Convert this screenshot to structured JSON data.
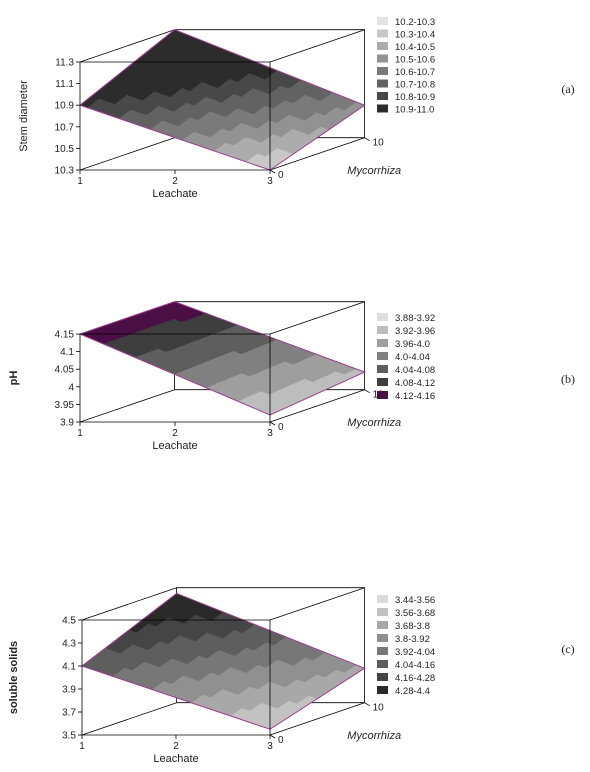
{
  "chart_data": [
    {
      "type": "surface3d",
      "panel_label": "(a)",
      "zlabel": "Stem diameter",
      "xlabel": "Leachate",
      "ylabel": "Mycorrhiza",
      "x_ticks": [
        "1",
        "2",
        "3"
      ],
      "y_ticks": [
        "0",
        "10"
      ],
      "z_ticks": [
        "10.3",
        "10.5",
        "10.7",
        "10.9",
        "11.1",
        "11.3"
      ],
      "xlim": [
        1,
        3
      ],
      "ylim": [
        0,
        10
      ],
      "zlim": [
        10.3,
        11.3
      ],
      "surface_corners": {
        "x1_y0": 10.9,
        "x1_y10": 11.3,
        "x3_y0": 10.3,
        "x3_y10": 10.6
      },
      "legend": [
        "10.2-10.3",
        "10.3-10.4",
        "10.4-10.5",
        "10.5-10.6",
        "10.6-10.7",
        "10.7-10.8",
        "10.8-10.9",
        "10.9-11.0"
      ],
      "legend_colors": [
        "#e3e3e3",
        "#c8c8c8",
        "#acacac",
        "#929292",
        "#7a7a7a",
        "#626262",
        "#484848",
        "#2c2c2c"
      ]
    },
    {
      "type": "surface3d",
      "panel_label": "(b)",
      "zlabel": "pH",
      "xlabel": "Leachate",
      "ylabel": "Mycorrhiza",
      "x_ticks": [
        "1",
        "2",
        "3"
      ],
      "y_ticks": [
        "0",
        "10"
      ],
      "z_ticks": [
        "3.9",
        "3.95",
        "4",
        "4.05",
        "4.1",
        "4.15"
      ],
      "xlim": [
        1,
        3
      ],
      "ylim": [
        0,
        10
      ],
      "zlim": [
        3.9,
        4.15
      ],
      "surface_corners": {
        "x1_y0": 4.15,
        "x1_y10": 4.15,
        "x3_y0": 3.92,
        "x3_y10": 3.95
      },
      "legend": [
        "3.88-3.92",
        "3.92-3.96",
        "3.96-4.0",
        "4.0-4.04",
        "4.04-4.08",
        "4.08-4.12",
        "4.12-4.16"
      ],
      "legend_colors": [
        "#dedede",
        "#bdbdbd",
        "#9e9e9e",
        "#808080",
        "#5e5e5e",
        "#3e3e3e",
        "#4a0f44"
      ]
    },
    {
      "type": "surface3d",
      "panel_label": "(c)",
      "zlabel": "soluble solids",
      "xlabel": "Leachate",
      "ylabel": "Mycorrhiza",
      "x_ticks": [
        "1",
        "2",
        "3"
      ],
      "y_ticks": [
        "0",
        "10"
      ],
      "z_ticks": [
        "3.5",
        "3.7",
        "3.9",
        "4.1",
        "4.3",
        "4.5"
      ],
      "xlim": [
        1,
        3
      ],
      "ylim": [
        0,
        10
      ],
      "zlim": [
        3.5,
        4.5
      ],
      "surface_corners": {
        "x1_y0": 4.1,
        "x1_y10": 4.45,
        "x3_y0": 3.55,
        "x3_y10": 3.8
      },
      "legend": [
        "3.44-3.56",
        "3.56-3.68",
        "3.68-3.8",
        "3.8-3.92",
        "3.92-4.04",
        "4.04-4.16",
        "4.16-4.28",
        "4.28-4.4"
      ],
      "legend_colors": [
        "#dadada",
        "#c2c2c2",
        "#a8a8a8",
        "#909090",
        "#777777",
        "#5e5e5e",
        "#454545",
        "#2a2a2a"
      ]
    }
  ],
  "colors": {
    "surface_edge": "#9b3f8e",
    "box": "#000000"
  }
}
